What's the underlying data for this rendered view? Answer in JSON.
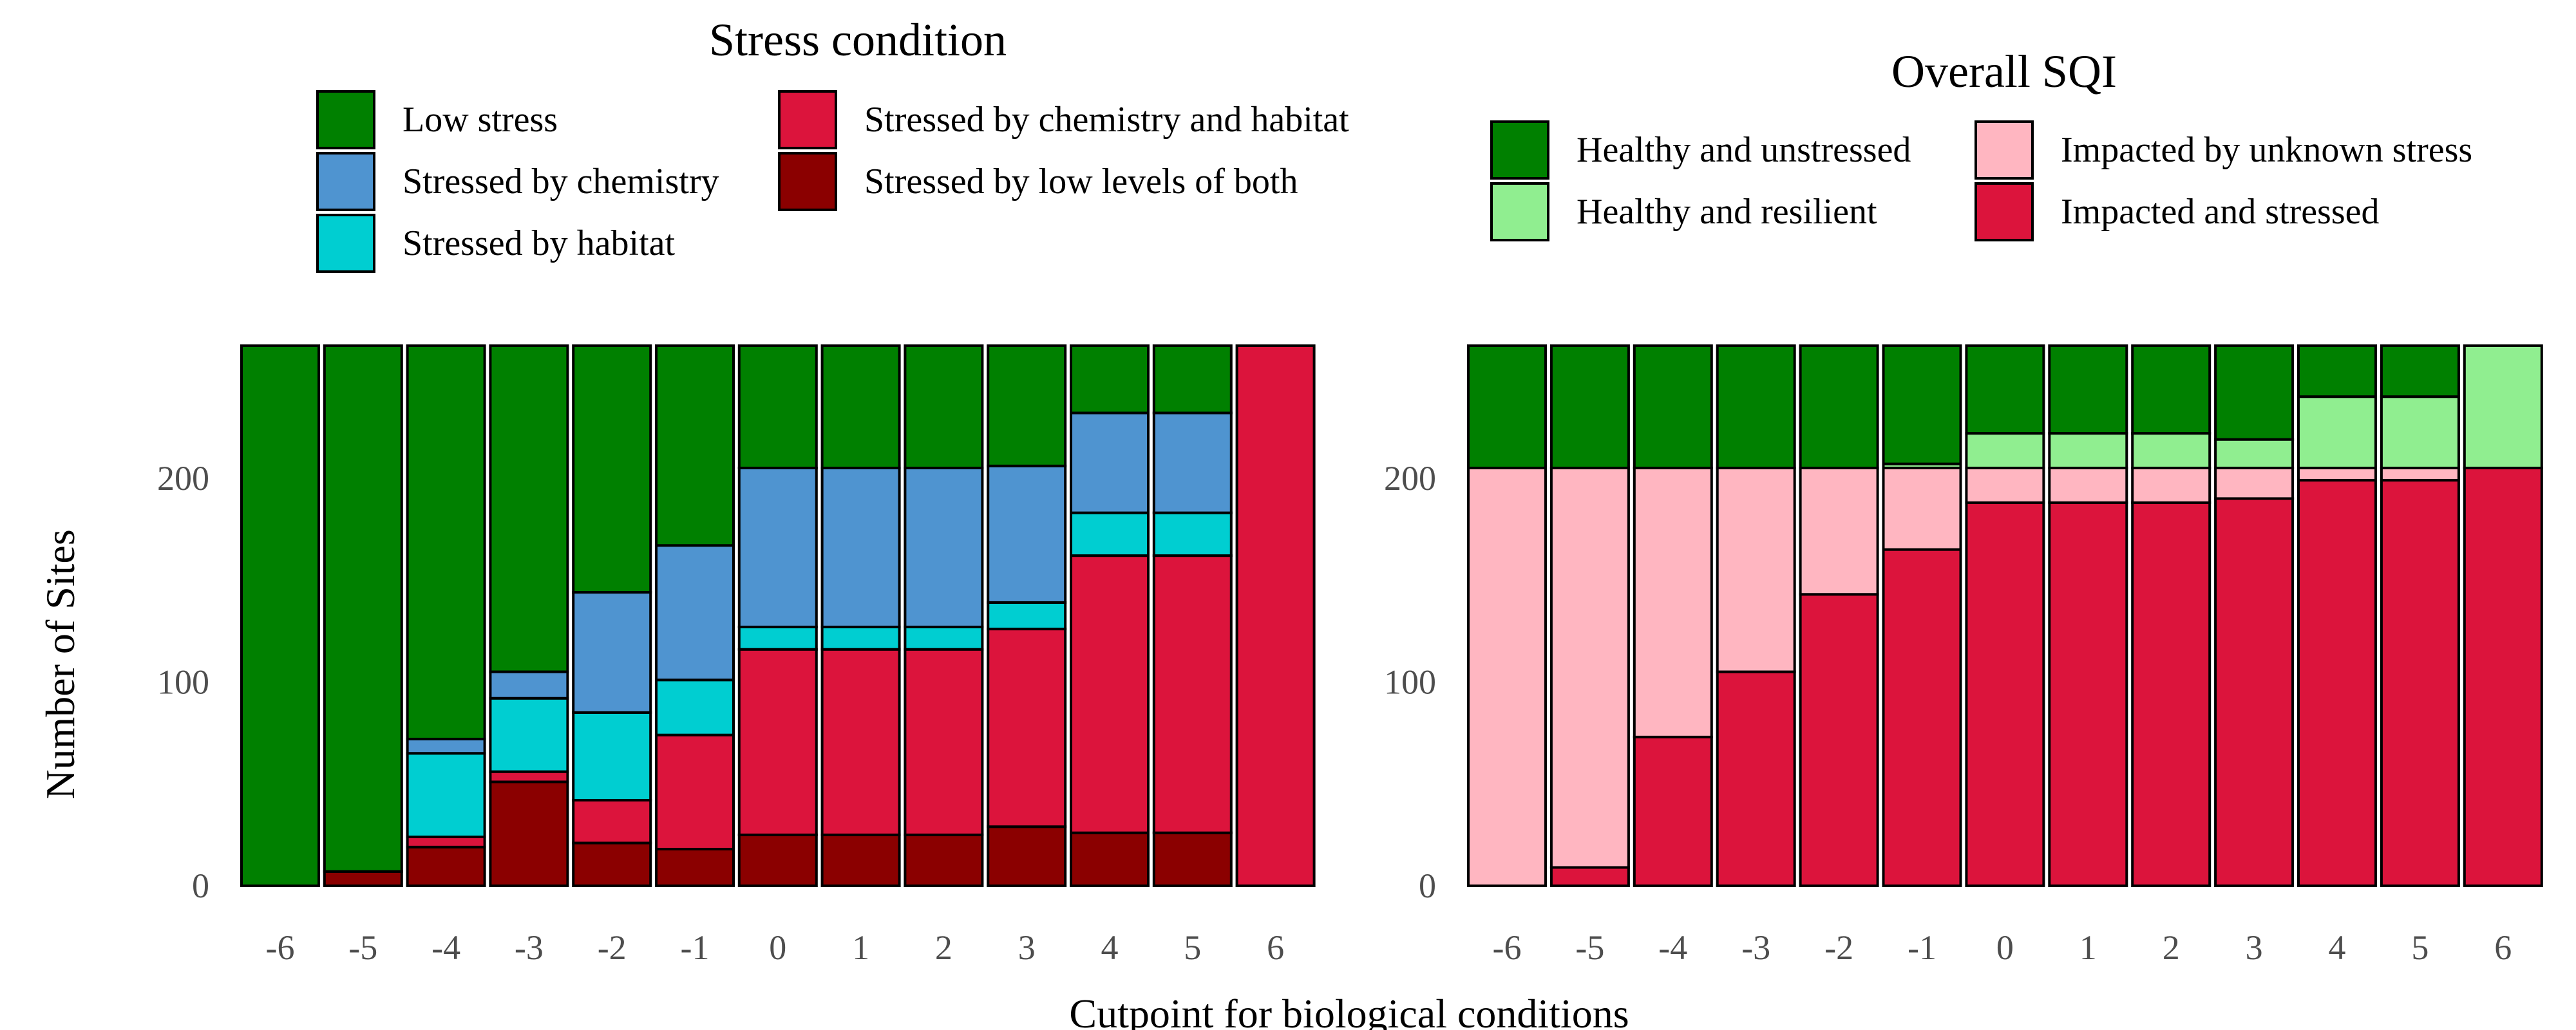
{
  "chart_data": [
    {
      "type": "bar",
      "stacked": true,
      "legend_title": "Stress condition",
      "legend_position": "top",
      "ylabel": "Number of Sites",
      "ylim": [
        0,
        265
      ],
      "yticks": [
        0,
        100,
        200
      ],
      "categories": [
        "-6",
        "-5",
        "-4",
        "-3",
        "-2",
        "-1",
        "0",
        "1",
        "2",
        "3",
        "4",
        "5",
        "6"
      ],
      "series": [
        {
          "name": "Stressed by low levels of both",
          "color": "#8B0000",
          "values": [
            0,
            7,
            19,
            51,
            21,
            18,
            25,
            25,
            25,
            29,
            26,
            26,
            0
          ]
        },
        {
          "name": "Stressed by chemistry and habitat",
          "color": "#DC143C",
          "values": [
            0,
            0,
            5,
            5,
            21,
            56,
            91,
            91,
            91,
            97,
            136,
            136,
            265
          ]
        },
        {
          "name": "Stressed by habitat",
          "color": "#00CED1",
          "values": [
            0,
            0,
            41,
            36,
            43,
            27,
            11,
            11,
            11,
            13,
            21,
            21,
            0
          ]
        },
        {
          "name": "Stressed by chemistry",
          "color": "#4F94D0",
          "values": [
            0,
            0,
            7,
            13,
            59,
            66,
            78,
            78,
            78,
            67,
            49,
            49,
            0
          ]
        },
        {
          "name": "Low stress",
          "color": "#008000",
          "values": [
            265,
            258,
            193,
            160,
            121,
            98,
            60,
            60,
            60,
            59,
            33,
            33,
            0
          ]
        }
      ],
      "legend_order": [
        "Low stress",
        "Stressed by chemistry",
        "Stressed by habitat",
        "Stressed by chemistry and habitat",
        "Stressed by low levels of both"
      ]
    },
    {
      "type": "bar",
      "stacked": true,
      "legend_title": "Overall SQI",
      "legend_position": "top",
      "ylim": [
        0,
        265
      ],
      "yticks": [
        0,
        100,
        200
      ],
      "categories": [
        "-6",
        "-5",
        "-4",
        "-3",
        "-2",
        "-1",
        "0",
        "1",
        "2",
        "3",
        "4",
        "5",
        "6"
      ],
      "series": [
        {
          "name": "Impacted and stressed",
          "color": "#DC143C",
          "values": [
            0,
            9,
            73,
            105,
            143,
            165,
            188,
            188,
            188,
            190,
            199,
            199,
            205
          ]
        },
        {
          "name": "Impacted by unknown stress",
          "color": "#FFB6C1",
          "values": [
            205,
            196,
            132,
            100,
            62,
            40,
            17,
            17,
            17,
            15,
            6,
            6,
            0
          ]
        },
        {
          "name": "Healthy and resilient",
          "color": "#90EE90",
          "values": [
            0,
            0,
            0,
            0,
            0,
            2,
            17,
            17,
            17,
            14,
            35,
            35,
            60
          ]
        },
        {
          "name": "Healthy and unstressed",
          "color": "#008000",
          "values": [
            60,
            60,
            60,
            60,
            60,
            58,
            43,
            43,
            43,
            46,
            25,
            25,
            0
          ]
        }
      ],
      "legend_order": [
        "Healthy and unstressed",
        "Healthy and resilient",
        "Impacted by unknown stress",
        "Impacted and stressed"
      ]
    }
  ],
  "shared_xlabel": "Cutpoint for biological conditions"
}
